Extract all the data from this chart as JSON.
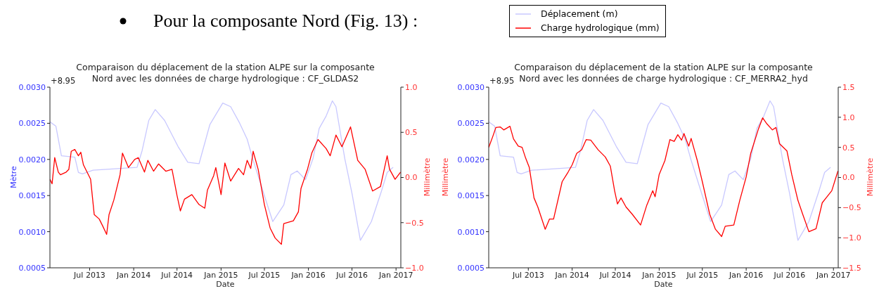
{
  "chart_data": [
    {
      "type": "other",
      "title": "Pour la composante Nord (Fig. 13) :"
    },
    {
      "type": "line",
      "title": "Comparaison du déplacement de la station ALPE sur la composante\nNord avec les données de charge hydrologique : CF_GLDAS2",
      "xlabel": "Date",
      "ylabel": "Mètre",
      "y2label": "Millimètre",
      "annotations": [
        "+8.95"
      ],
      "legend": "top",
      "grid": false,
      "marker": "none",
      "line_style": "solid",
      "xlim": [
        "2013-01-16",
        "2017-01-21"
      ],
      "xticks": [
        {
          "value": "2013-07-01",
          "label": "Jul 2013"
        },
        {
          "value": "2014-01-01",
          "label": "Jan 2014"
        },
        {
          "value": "2014-07-01",
          "label": "Jul 2014"
        },
        {
          "value": "2015-01-01",
          "label": "Jan 2015"
        },
        {
          "value": "2015-07-01",
          "label": "Jul 2015"
        },
        {
          "value": "2016-01-01",
          "label": "Jan 2016"
        },
        {
          "value": "2016-07-01",
          "label": "Jul 2016"
        },
        {
          "value": "2017-01-01",
          "label": "Jan 2017"
        }
      ],
      "ylim": [
        0.0005,
        0.003
      ],
      "yticks": [
        {
          "value": 0.0005,
          "label": "0.0005"
        },
        {
          "value": 0.001,
          "label": "0.0010"
        },
        {
          "value": 0.0015,
          "label": "0.0015"
        },
        {
          "value": 0.002,
          "label": "0.0020"
        },
        {
          "value": 0.0025,
          "label": "0.0025"
        },
        {
          "value": 0.003,
          "label": "0.0030"
        }
      ],
      "y2lim": [
        -1,
        1
      ],
      "y2ticks": [
        {
          "value": -1,
          "label": "−1.0"
        },
        {
          "value": -0.5,
          "label": "−0.5"
        },
        {
          "value": 0,
          "label": "0.0"
        },
        {
          "value": 0.5,
          "label": "0.5"
        },
        {
          "value": 1,
          "label": "1.0"
        }
      ],
      "series": [
        {
          "name": "Déplacement (m)",
          "color": "#c8c8ff",
          "x": [
            "2013-01-16",
            "2013-02-10",
            "2013-03-05",
            "2013-04-30",
            "2013-05-15",
            "2013-06-01",
            "2013-07-15",
            "2014-01-15",
            "2014-02-05",
            "2014-03-05",
            "2014-04-01",
            "2014-05-10",
            "2014-07-05",
            "2014-08-15",
            "2014-10-01",
            "2014-11-15",
            "2015-01-08",
            "2015-02-10",
            "2015-03-20",
            "2015-04-20",
            "2015-05-15",
            "2015-07-01",
            "2015-08-05",
            "2015-09-20",
            "2015-10-20",
            "2015-11-15",
            "2015-12-20",
            "2016-01-20",
            "2016-02-15",
            "2016-03-15",
            "2016-04-10",
            "2016-04-25",
            "2016-06-01",
            "2016-07-01",
            "2016-08-05",
            "2016-09-20",
            "2016-11-01",
            "2016-11-25",
            "2016-12-20"
          ],
          "values": [
            0.00252,
            0.00246,
            0.00205,
            0.00203,
            0.00182,
            0.0018,
            0.00185,
            0.00189,
            0.00212,
            0.00254,
            0.00269,
            0.00254,
            0.00218,
            0.00196,
            0.00194,
            0.00248,
            0.00278,
            0.00273,
            0.0025,
            0.00228,
            0.00199,
            0.0015,
            0.00114,
            0.00137,
            0.00179,
            0.00184,
            0.00172,
            0.00201,
            0.00243,
            0.0026,
            0.00281,
            0.00273,
            0.00201,
            0.00153,
            0.00088,
            0.00114,
            0.00156,
            0.00182,
            0.00189
          ]
        },
        {
          "name": "Charge hydrologique (mm)",
          "color": "#ff0000",
          "axis": "y2",
          "x": [
            "2013-01-16",
            "2013-01-25",
            "2013-02-05",
            "2013-02-20",
            "2013-03-01",
            "2013-03-25",
            "2013-04-05",
            "2013-04-15",
            "2013-04-30",
            "2013-05-15",
            "2013-05-25",
            "2013-06-05",
            "2013-07-05",
            "2013-07-20",
            "2013-08-10",
            "2013-08-25",
            "2013-09-10",
            "2013-09-20",
            "2013-10-10",
            "2013-11-05",
            "2013-11-15",
            "2013-12-10",
            "2014-01-05",
            "2014-01-20",
            "2014-02-15",
            "2014-03-01",
            "2014-03-25",
            "2014-04-15",
            "2014-05-15",
            "2014-06-10",
            "2014-07-01",
            "2014-07-15",
            "2014-08-01",
            "2014-09-01",
            "2014-10-01",
            "2014-10-25",
            "2014-11-05",
            "2014-12-01",
            "2014-12-10",
            "2015-01-01",
            "2015-01-17",
            "2015-02-10",
            "2015-03-15",
            "2015-04-05",
            "2015-04-20",
            "2015-05-05",
            "2015-05-15",
            "2015-06-05",
            "2015-07-01",
            "2015-07-25",
            "2015-08-15",
            "2015-09-10",
            "2015-09-20",
            "2015-10-30",
            "2015-11-20",
            "2015-12-01",
            "2015-12-28",
            "2016-01-15",
            "2016-02-10",
            "2016-03-15",
            "2016-04-01",
            "2016-04-25",
            "2016-05-20",
            "2016-06-25",
            "2016-07-25",
            "2016-08-25",
            "2016-09-25",
            "2016-10-28",
            "2016-11-25",
            "2016-12-05",
            "2016-12-28",
            "2017-01-20"
          ],
          "values": [
            -0.02,
            -0.07,
            0.22,
            0.06,
            0.03,
            0.06,
            0.09,
            0.29,
            0.31,
            0.24,
            0.28,
            0.14,
            -0.02,
            -0.41,
            -0.46,
            -0.54,
            -0.63,
            -0.41,
            -0.25,
            0.03,
            0.27,
            0.11,
            0.2,
            0.22,
            0.06,
            0.19,
            0.07,
            0.15,
            0.07,
            0.09,
            -0.2,
            -0.37,
            -0.24,
            -0.19,
            -0.3,
            -0.34,
            -0.14,
            0.02,
            0.11,
            -0.19,
            0.16,
            -0.04,
            0.1,
            0.03,
            0.19,
            0.1,
            0.29,
            0.09,
            -0.3,
            -0.56,
            -0.67,
            -0.74,
            -0.51,
            -0.48,
            -0.38,
            -0.12,
            0.09,
            0.27,
            0.42,
            0.32,
            0.24,
            0.47,
            0.34,
            0.56,
            0.19,
            0.09,
            -0.15,
            -0.1,
            0.24,
            0.09,
            -0.02,
            0.06
          ]
        }
      ]
    },
    {
      "type": "line",
      "title": "Comparaison du déplacement de la station ALPE sur la composante\nNord avec les données de charge hydrologique : CF_MERRA2_hyd",
      "xlabel": "Date",
      "ylabel": "Millimètre",
      "y2label": "Millimètre",
      "annotations": [
        "+8.95"
      ],
      "grid": false,
      "marker": "none",
      "line_style": "solid",
      "xlim": [
        "2013-01-16",
        "2017-01-21"
      ],
      "xticks": [
        {
          "value": "2013-07-01",
          "label": "Jul 2013"
        },
        {
          "value": "2014-01-01",
          "label": "Jan 2014"
        },
        {
          "value": "2014-07-01",
          "label": "Jul 2014"
        },
        {
          "value": "2015-01-01",
          "label": "Jan 2015"
        },
        {
          "value": "2015-07-01",
          "label": "Jul 2015"
        },
        {
          "value": "2016-01-01",
          "label": "Jan 2016"
        },
        {
          "value": "2016-07-01",
          "label": "Jul 2016"
        },
        {
          "value": "2017-01-01",
          "label": "Jan 2017"
        }
      ],
      "ylim": [
        0.0005,
        0.003
      ],
      "yticks": [
        {
          "value": 0.0005,
          "label": "0.0005"
        },
        {
          "value": 0.001,
          "label": "0.0010"
        },
        {
          "value": 0.0015,
          "label": "0.0015"
        },
        {
          "value": 0.002,
          "label": "0.0020"
        },
        {
          "value": 0.0025,
          "label": "0.0025"
        },
        {
          "value": 0.003,
          "label": "0.0030"
        }
      ],
      "y2lim": [
        -1.5,
        1.5
      ],
      "y2ticks": [
        {
          "value": -1.5,
          "label": "−1.5"
        },
        {
          "value": -1,
          "label": "−1.0"
        },
        {
          "value": -0.5,
          "label": "−0.5"
        },
        {
          "value": 0,
          "label": "0.0"
        },
        {
          "value": 0.5,
          "label": "0.5"
        },
        {
          "value": 1,
          "label": "1.0"
        },
        {
          "value": 1.5,
          "label": "1.5"
        }
      ],
      "series": [
        {
          "color": "#c8c8ff",
          "x": [
            "2013-01-16",
            "2013-02-10",
            "2013-03-05",
            "2013-04-30",
            "2013-05-15",
            "2013-06-01",
            "2013-07-15",
            "2014-01-15",
            "2014-02-05",
            "2014-03-05",
            "2014-04-01",
            "2014-05-10",
            "2014-07-05",
            "2014-08-15",
            "2014-10-01",
            "2014-11-15",
            "2015-01-08",
            "2015-02-10",
            "2015-03-20",
            "2015-04-20",
            "2015-05-15",
            "2015-07-01",
            "2015-08-05",
            "2015-09-20",
            "2015-10-20",
            "2015-11-15",
            "2015-12-20",
            "2016-01-20",
            "2016-02-15",
            "2016-03-15",
            "2016-04-10",
            "2016-04-25",
            "2016-06-01",
            "2016-07-01",
            "2016-08-05",
            "2016-09-20",
            "2016-11-01",
            "2016-11-25",
            "2016-12-20"
          ],
          "values": [
            0.00252,
            0.00246,
            0.00205,
            0.00203,
            0.00182,
            0.0018,
            0.00185,
            0.00189,
            0.00212,
            0.00254,
            0.00269,
            0.00254,
            0.00218,
            0.00196,
            0.00194,
            0.00248,
            0.00278,
            0.00273,
            0.0025,
            0.00228,
            0.00199,
            0.0015,
            0.00114,
            0.00137,
            0.00179,
            0.00184,
            0.00172,
            0.00201,
            0.00243,
            0.0026,
            0.00281,
            0.00273,
            0.00201,
            0.00153,
            0.00088,
            0.00114,
            0.00156,
            0.00182,
            0.00189
          ]
        },
        {
          "color": "#ff0000",
          "axis": "y2",
          "x": [
            "2013-01-16",
            "2013-02-01",
            "2013-02-15",
            "2013-03-05",
            "2013-03-20",
            "2013-04-15",
            "2013-04-30",
            "2013-05-20",
            "2013-06-05",
            "2013-06-20",
            "2013-07-05",
            "2013-07-25",
            "2013-08-10",
            "2013-08-30",
            "2013-09-10",
            "2013-09-28",
            "2013-10-15",
            "2013-11-20",
            "2013-12-15",
            "2014-01-01",
            "2014-01-20",
            "2014-02-10",
            "2014-03-01",
            "2014-03-20",
            "2014-04-20",
            "2014-05-20",
            "2014-06-10",
            "2014-06-28",
            "2014-07-10",
            "2014-07-25",
            "2014-08-15",
            "2014-09-10",
            "2014-10-15",
            "2014-11-10",
            "2014-12-05",
            "2014-12-15",
            "2015-01-01",
            "2015-01-25",
            "2015-02-15",
            "2015-03-05",
            "2015-03-20",
            "2015-04-05",
            "2015-04-15",
            "2015-05-05",
            "2015-05-15",
            "2015-06-10",
            "2015-07-01",
            "2015-08-01",
            "2015-08-25",
            "2015-09-20",
            "2015-10-05",
            "2015-11-10",
            "2015-12-05",
            "2016-01-01",
            "2016-01-20",
            "2016-02-20",
            "2016-03-10",
            "2016-03-28",
            "2016-04-20",
            "2016-05-05",
            "2016-05-20",
            "2016-06-20",
            "2016-07-10",
            "2016-08-05",
            "2016-08-25",
            "2016-09-20",
            "2016-10-20",
            "2016-11-15",
            "2016-12-01",
            "2016-12-25",
            "2017-01-20"
          ],
          "values": [
            0.5,
            0.67,
            0.83,
            0.84,
            0.79,
            0.85,
            0.64,
            0.52,
            0.5,
            0.32,
            0.17,
            -0.34,
            -0.49,
            -0.73,
            -0.86,
            -0.69,
            -0.69,
            -0.07,
            0.09,
            0.21,
            0.4,
            0.46,
            0.63,
            0.62,
            0.46,
            0.34,
            0.19,
            -0.22,
            -0.44,
            -0.34,
            -0.49,
            -0.61,
            -0.79,
            -0.46,
            -0.22,
            -0.32,
            0.05,
            0.28,
            0.63,
            0.6,
            0.71,
            0.62,
            0.73,
            0.52,
            0.65,
            0.28,
            -0.07,
            -0.61,
            -0.86,
            -0.98,
            -0.81,
            -0.79,
            -0.38,
            0.01,
            0.4,
            0.79,
            0.99,
            0.89,
            0.79,
            0.83,
            0.56,
            0.44,
            0.05,
            -0.38,
            -0.61,
            -0.9,
            -0.85,
            -0.42,
            -0.34,
            -0.22,
            0.11
          ]
        }
      ]
    }
  ]
}
